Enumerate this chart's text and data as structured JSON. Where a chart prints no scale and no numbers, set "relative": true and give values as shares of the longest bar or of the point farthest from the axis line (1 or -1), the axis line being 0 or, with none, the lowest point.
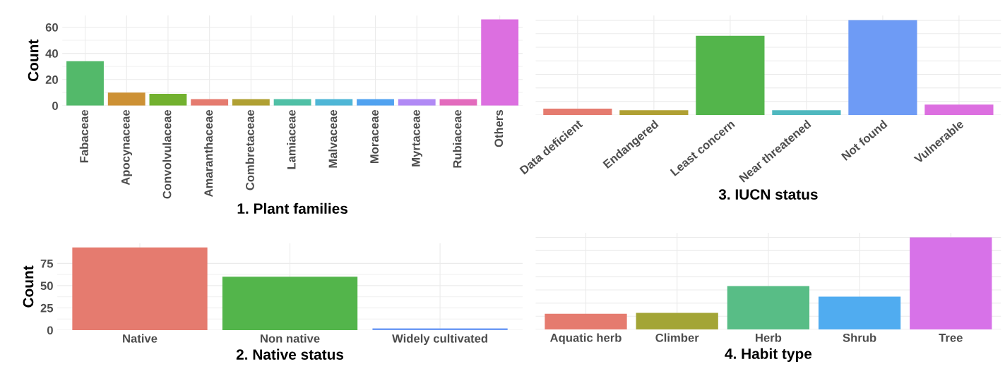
{
  "chart_data": [
    {
      "type": "bar",
      "xlabel": "1. Plant families",
      "ylabel": "Count",
      "categories": [
        "Fabaceae",
        "Apocynaceae",
        "Convolvulaceae",
        "Amaranthaceae",
        "Combretaceae",
        "Lamiaceae",
        "Malvaceae",
        "Moraceae",
        "Myrtaceae",
        "Rubiaceae",
        "Others"
      ],
      "values": [
        34,
        10,
        9,
        5,
        5,
        5,
        5,
        5,
        5,
        5,
        66
      ],
      "colors": [
        "#53b96a",
        "#cd9135",
        "#72b12f",
        "#e57b6f",
        "#b0a033",
        "#50c0a6",
        "#4fb6d6",
        "#51a2f0",
        "#b18af5",
        "#e36bbd",
        "#dc6fe0"
      ],
      "ylim": [
        0,
        69
      ],
      "yticks": [
        0,
        20,
        40,
        60
      ],
      "grid": true
    },
    {
      "type": "bar",
      "xlabel": "3. IUCN status",
      "relative": true,
      "categories": [
        "Data deficient",
        "Endangered",
        "Least concern",
        "Near threatened",
        "Not found",
        "Vulnerable"
      ],
      "values": [
        0.067,
        0.05,
        0.835,
        0.05,
        1,
        0.11
      ],
      "colors": [
        "#e57b6f",
        "#b0a033",
        "#53b54b",
        "#4fb8bf",
        "#6e9bf5",
        "#dc6fe0"
      ],
      "grid": true
    },
    {
      "type": "bar",
      "xlabel": "2. Native status",
      "ylabel": "Count",
      "categories": [
        "Native",
        "Non native",
        "Widely cultivated"
      ],
      "values": [
        93,
        60,
        2
      ],
      "colors": [
        "#e57b6f",
        "#53b54b",
        "#6e9bf5"
      ],
      "ylim": [
        0,
        97.6
      ],
      "yticks": [
        0,
        25,
        50,
        75
      ],
      "grid": true
    },
    {
      "type": "bar",
      "xlabel": "4. Habit type",
      "relative": true,
      "categories": [
        "Aquatic herb",
        "Climber",
        "Herb",
        "Shrub",
        "Tree"
      ],
      "values": [
        0.17,
        0.18,
        0.47,
        0.356,
        1
      ],
      "colors": [
        "#e57b6f",
        "#a3a536",
        "#58bd86",
        "#50acf0",
        "#d772e8"
      ],
      "grid": true
    }
  ]
}
